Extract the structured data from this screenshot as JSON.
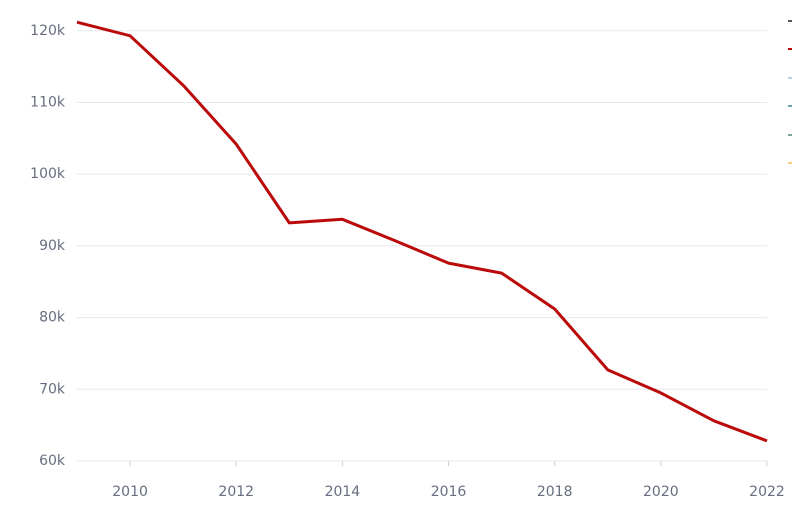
{
  "chart_data": {
    "type": "line",
    "x": [
      2009,
      2010,
      2011,
      2012,
      2013,
      2014,
      2015,
      2016,
      2017,
      2018,
      2019,
      2020,
      2021,
      2022
    ],
    "series": [
      {
        "color": "#bb0a0a",
        "values": [
          121200,
          119300,
          112400,
          104200,
          93200,
          93700,
          90700,
          87600,
          86200,
          81200,
          72700,
          69500,
          65600,
          62800
        ]
      }
    ],
    "xlim": [
      2009,
      2022
    ],
    "xticks": [
      2010,
      2012,
      2014,
      2016,
      2018,
      2020,
      2022
    ],
    "ylim": [
      60000,
      121500
    ],
    "yticks": [
      {
        "value": 60000,
        "label": "60k"
      },
      {
        "value": 70000,
        "label": "70k"
      },
      {
        "value": 80000,
        "label": "80k"
      },
      {
        "value": 90000,
        "label": "90k"
      },
      {
        "value": 100000,
        "label": "100k"
      },
      {
        "value": 110000,
        "label": "110k"
      },
      {
        "value": 120000,
        "label": "120k"
      }
    ],
    "grid": true
  }
}
